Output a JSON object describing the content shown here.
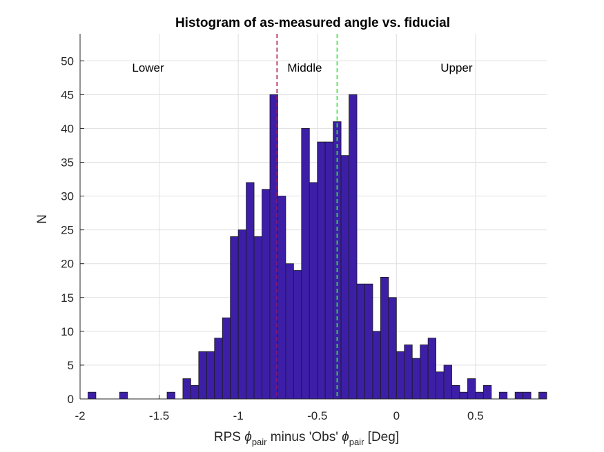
{
  "chart_data": {
    "type": "bar",
    "title": "Histogram of as-measured angle vs. fiducial",
    "xlabel": {
      "prefix": "RPS ",
      "phi": "ϕ",
      "sub": "pair",
      "middle": " minus 'Obs' ",
      "suffix": " [Deg]"
    },
    "ylabel": "N",
    "xlim": [
      -2.0,
      0.95
    ],
    "ylim": [
      0,
      54
    ],
    "xticks": [
      -2,
      -1.5,
      -1,
      -0.5,
      0,
      0.5
    ],
    "xtick_labels": [
      "-2",
      "-1.5",
      "-1",
      "-0.5",
      "0",
      "0.5"
    ],
    "yticks": [
      0,
      5,
      10,
      15,
      20,
      25,
      30,
      35,
      40,
      45,
      50
    ],
    "grid": true,
    "bin_width": 0.05,
    "bins": [
      {
        "x0": -1.95,
        "count": 1
      },
      {
        "x0": -1.9,
        "count": 0
      },
      {
        "x0": -1.85,
        "count": 0
      },
      {
        "x0": -1.8,
        "count": 0
      },
      {
        "x0": -1.75,
        "count": 1
      },
      {
        "x0": -1.7,
        "count": 0
      },
      {
        "x0": -1.65,
        "count": 0
      },
      {
        "x0": -1.6,
        "count": 0
      },
      {
        "x0": -1.55,
        "count": 0
      },
      {
        "x0": -1.5,
        "count": 0
      },
      {
        "x0": -1.45,
        "count": 1
      },
      {
        "x0": -1.4,
        "count": 0
      },
      {
        "x0": -1.35,
        "count": 3
      },
      {
        "x0": -1.3,
        "count": 2
      },
      {
        "x0": -1.25,
        "count": 7
      },
      {
        "x0": -1.2,
        "count": 7
      },
      {
        "x0": -1.15,
        "count": 9
      },
      {
        "x0": -1.1,
        "count": 12
      },
      {
        "x0": -1.05,
        "count": 24
      },
      {
        "x0": -1.0,
        "count": 25
      },
      {
        "x0": -0.95,
        "count": 32
      },
      {
        "x0": -0.9,
        "count": 24
      },
      {
        "x0": -0.85,
        "count": 31
      },
      {
        "x0": -0.8,
        "count": 45
      },
      {
        "x0": -0.75,
        "count": 30
      },
      {
        "x0": -0.7,
        "count": 20
      },
      {
        "x0": -0.65,
        "count": 19
      },
      {
        "x0": -0.6,
        "count": 40
      },
      {
        "x0": -0.55,
        "count": 32
      },
      {
        "x0": -0.5,
        "count": 38
      },
      {
        "x0": -0.45,
        "count": 38
      },
      {
        "x0": -0.4,
        "count": 41
      },
      {
        "x0": -0.35,
        "count": 36
      },
      {
        "x0": -0.3,
        "count": 45
      },
      {
        "x0": -0.25,
        "count": 17
      },
      {
        "x0": -0.2,
        "count": 17
      },
      {
        "x0": -0.15,
        "count": 10
      },
      {
        "x0": -0.1,
        "count": 18
      },
      {
        "x0": -0.05,
        "count": 15
      },
      {
        "x0": 0.0,
        "count": 7
      },
      {
        "x0": 0.05,
        "count": 8
      },
      {
        "x0": 0.1,
        "count": 6
      },
      {
        "x0": 0.15,
        "count": 8
      },
      {
        "x0": 0.2,
        "count": 9
      },
      {
        "x0": 0.25,
        "count": 4
      },
      {
        "x0": 0.3,
        "count": 5
      },
      {
        "x0": 0.35,
        "count": 2
      },
      {
        "x0": 0.4,
        "count": 1
      },
      {
        "x0": 0.45,
        "count": 3
      },
      {
        "x0": 0.5,
        "count": 1
      },
      {
        "x0": 0.55,
        "count": 2
      },
      {
        "x0": 0.6,
        "count": 0
      },
      {
        "x0": 0.65,
        "count": 1
      },
      {
        "x0": 0.7,
        "count": 0
      },
      {
        "x0": 0.75,
        "count": 1
      },
      {
        "x0": 0.8,
        "count": 1
      },
      {
        "x0": 0.85,
        "count": 0
      },
      {
        "x0": 0.9,
        "count": 1
      }
    ],
    "reference_lines": [
      {
        "x": -0.755,
        "color": "#b0174b"
      },
      {
        "x": -0.375,
        "color": "#3fe63f"
      }
    ],
    "annotations": [
      {
        "text": "Lower",
        "x": -1.57,
        "y": 49
      },
      {
        "text": "Middle",
        "x": -0.58,
        "y": 49
      },
      {
        "text": "Upper",
        "x": 0.38,
        "y": 49
      }
    ]
  }
}
